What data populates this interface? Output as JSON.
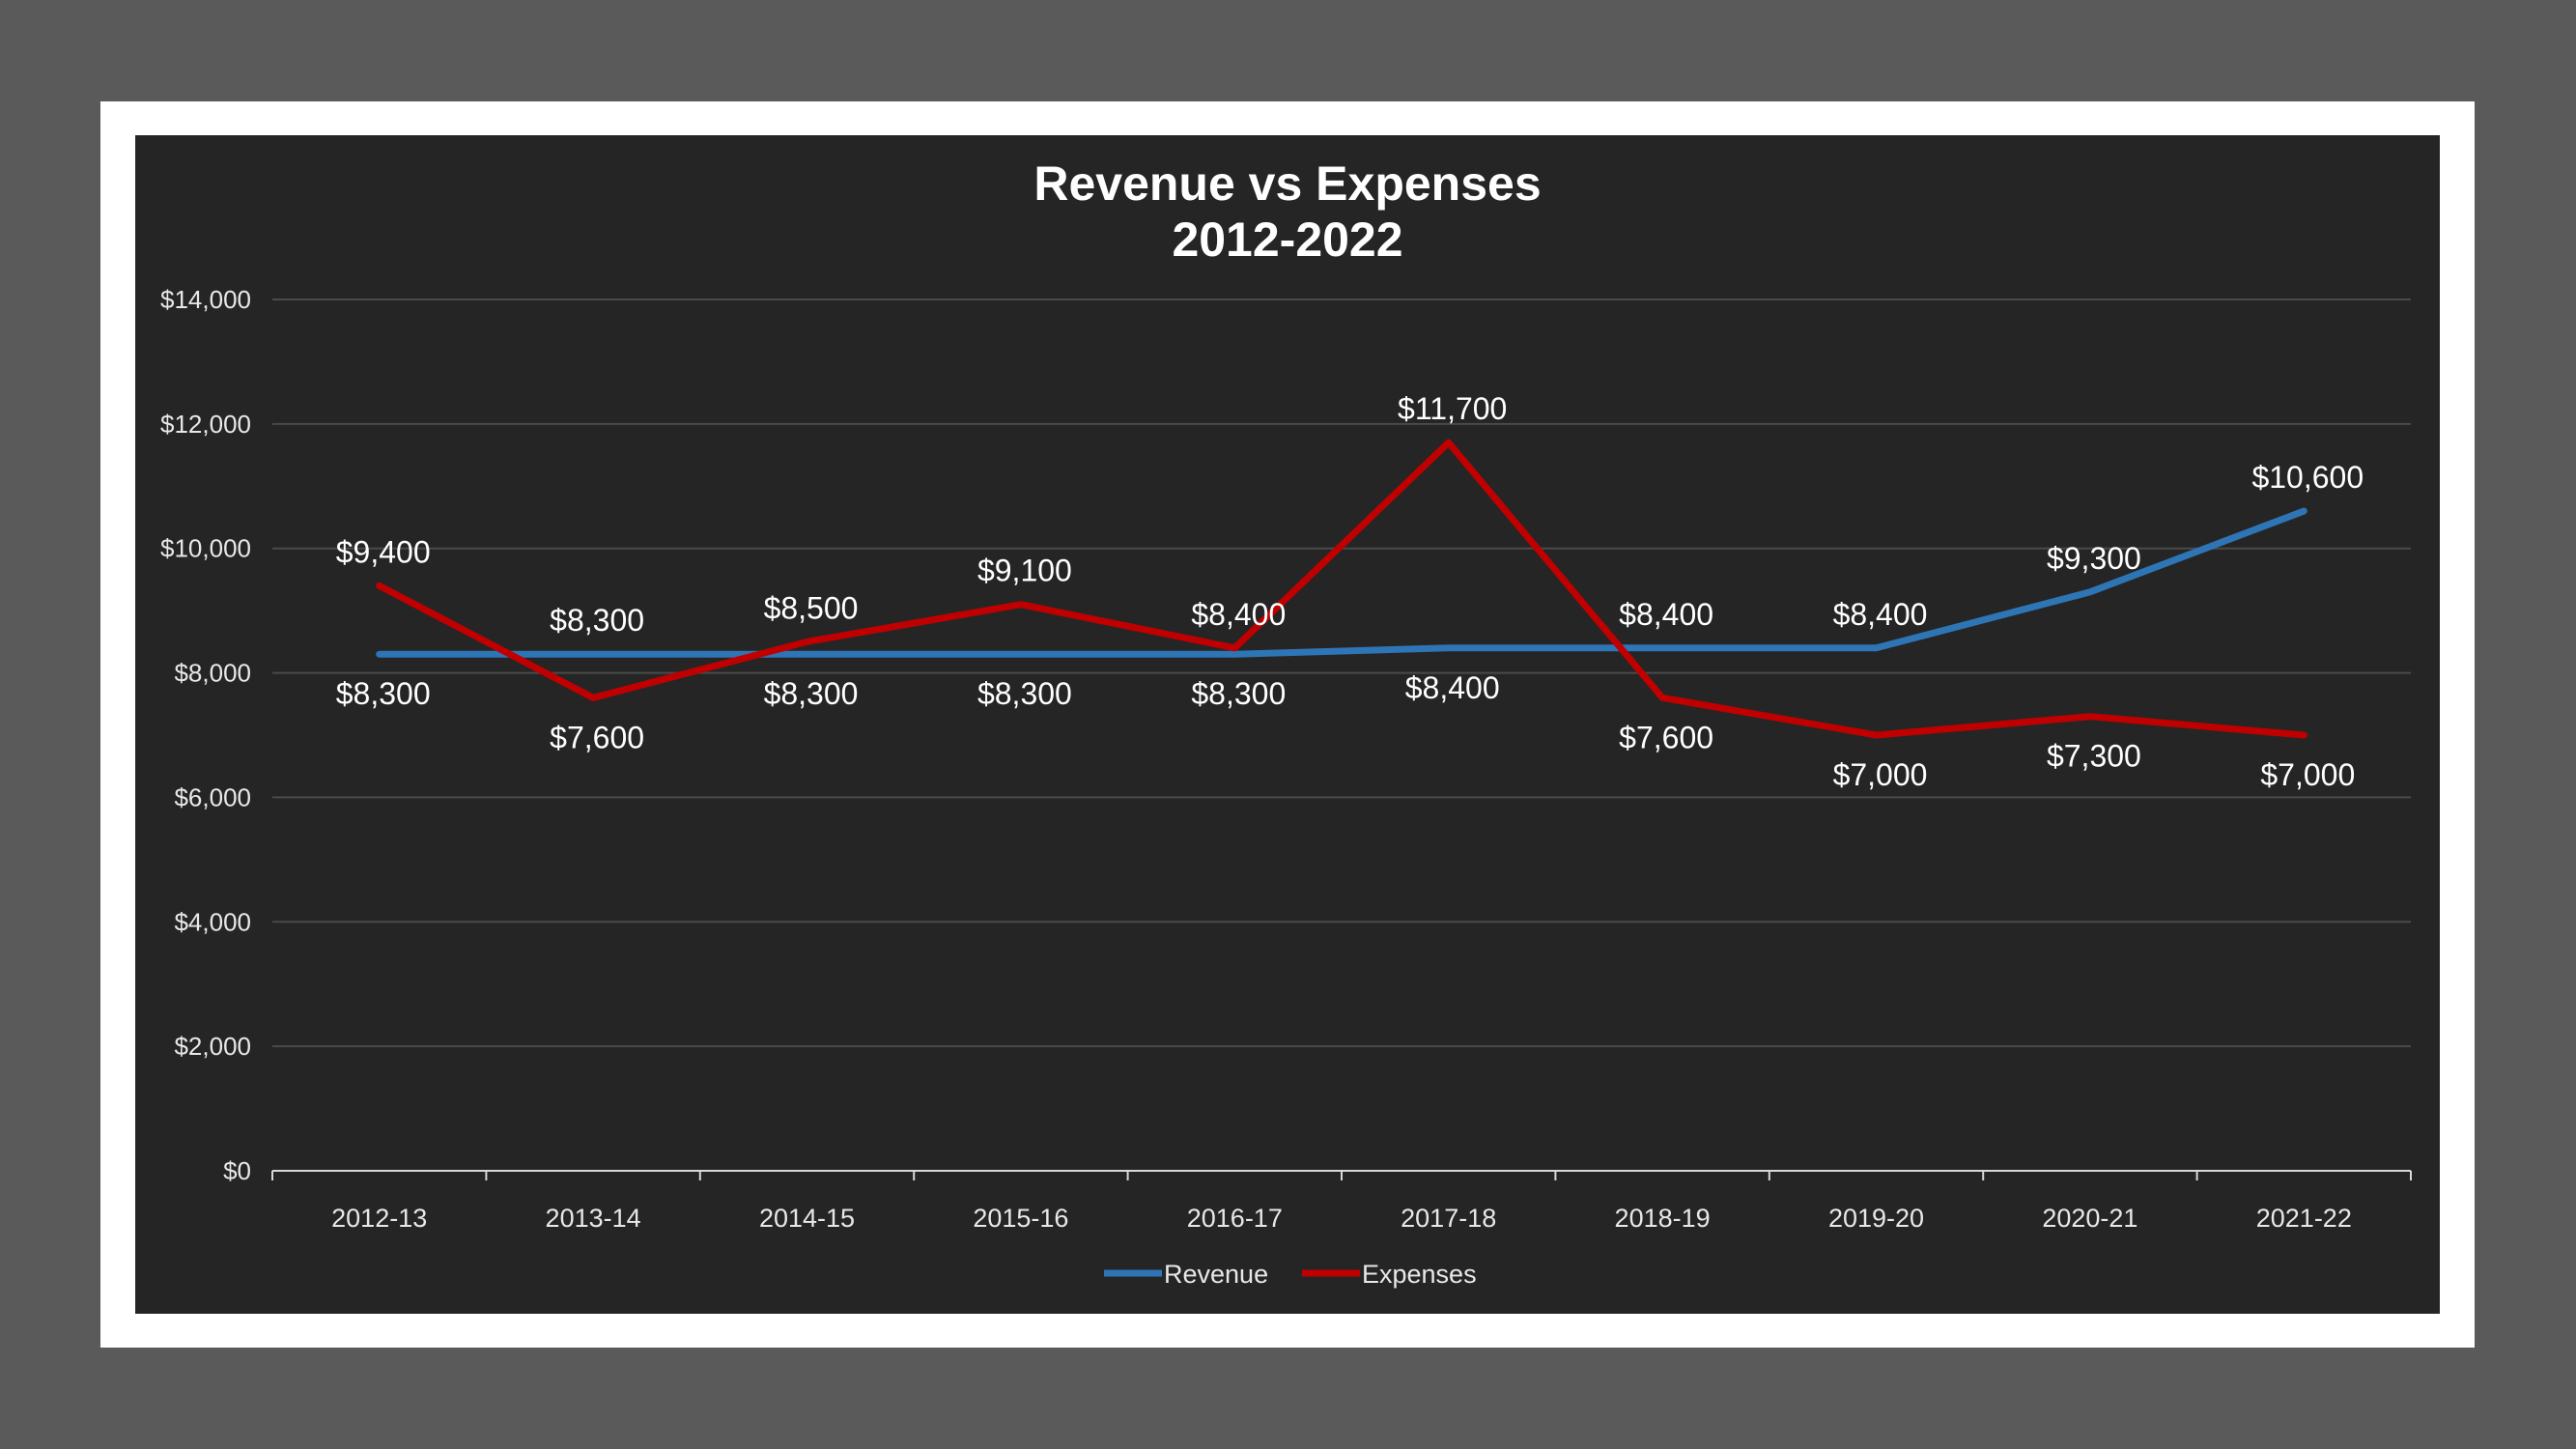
{
  "chart_data": {
    "type": "line",
    "title": "Revenue vs Expenses",
    "subtitle": "2012-2022",
    "categories": [
      "2012-13",
      "2013-14",
      "2014-15",
      "2015-16",
      "2016-17",
      "2017-18",
      "2018-19",
      "2019-20",
      "2020-21",
      "2021-22"
    ],
    "series": [
      {
        "name": "Revenue",
        "color": "#2e75b6",
        "values": [
          8300,
          8300,
          8300,
          8300,
          8300,
          8400,
          8400,
          8400,
          9300,
          10600
        ],
        "labels": [
          "$8,300",
          "$8,300",
          "$8,300",
          "$8,300",
          "$8,300",
          "$8,400",
          "$8,400",
          "$8,400",
          "$9,300",
          "$10,600"
        ]
      },
      {
        "name": "Expenses",
        "color": "#c00000",
        "values": [
          9400,
          7600,
          8500,
          9100,
          8400,
          11700,
          7600,
          7000,
          7300,
          7000
        ],
        "labels": [
          "$9,400",
          "$7,600",
          "$8,500",
          "$9,100",
          "$8,400",
          "$11,700",
          "$7,600",
          "$7,000",
          "$7,300",
          "$7,000"
        ]
      }
    ],
    "ylim": [
      0,
      14000
    ],
    "yticks": [
      0,
      2000,
      4000,
      6000,
      8000,
      10000,
      12000,
      14000
    ],
    "ytick_labels": [
      "$0",
      "$2,000",
      "$4,000",
      "$6,000",
      "$8,000",
      "$10,000",
      "$12,000",
      "$14,000"
    ],
    "grid": true,
    "legend": "bottom",
    "xlabel": "",
    "ylabel": ""
  }
}
